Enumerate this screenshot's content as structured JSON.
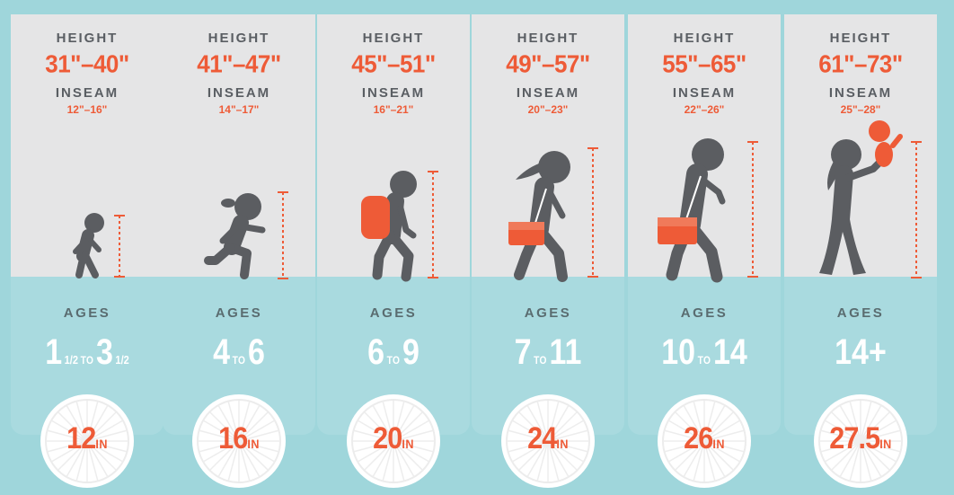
{
  "labels": {
    "height": "HEIGHT",
    "inseam": "INSEAM",
    "ages": "AGES"
  },
  "colors": {
    "accent": "#ee5b37",
    "figure": "#5b5d61",
    "teal": "#a9dadf",
    "panel": "#e5e5e6",
    "bg": "#9fd6db"
  },
  "wheel_unit": "IN",
  "columns": [
    {
      "height": "31\"–40\"",
      "inseam": "12\"–16\"",
      "age_from": "1",
      "age_from_frac": "1/2",
      "age_to": "3",
      "age_to_frac": "1/2",
      "age_sep": "TO",
      "wheel": "12",
      "figure": "toddler"
    },
    {
      "height": "41\"–47\"",
      "inseam": "14\"–17\"",
      "age_from": "4",
      "age_from_frac": "",
      "age_to": "6",
      "age_to_frac": "",
      "age_sep": "TO",
      "wheel": "16",
      "figure": "running-kid"
    },
    {
      "height": "45\"–51\"",
      "inseam": "16\"–21\"",
      "age_from": "6",
      "age_from_frac": "",
      "age_to": "9",
      "age_to_frac": "",
      "age_sep": "TO",
      "wheel": "20",
      "figure": "kid-backpack"
    },
    {
      "height": "49\"–57\"",
      "inseam": "20\"–23\"",
      "age_from": "7",
      "age_from_frac": "",
      "age_to": "11",
      "age_to_frac": "",
      "age_sep": "TO",
      "wheel": "24",
      "figure": "girl-bag"
    },
    {
      "height": "55\"–65\"",
      "inseam": "22\"–26\"",
      "age_from": "10",
      "age_from_frac": "",
      "age_to": "14",
      "age_to_frac": "",
      "age_sep": "TO",
      "wheel": "26",
      "figure": "teen-bag"
    },
    {
      "height": "61\"–73\"",
      "inseam": "25\"–28\"",
      "age_from": "14+",
      "age_from_frac": "",
      "age_to": "",
      "age_to_frac": "",
      "age_sep": "",
      "wheel": "27.5",
      "figure": "adult-baby"
    }
  ]
}
